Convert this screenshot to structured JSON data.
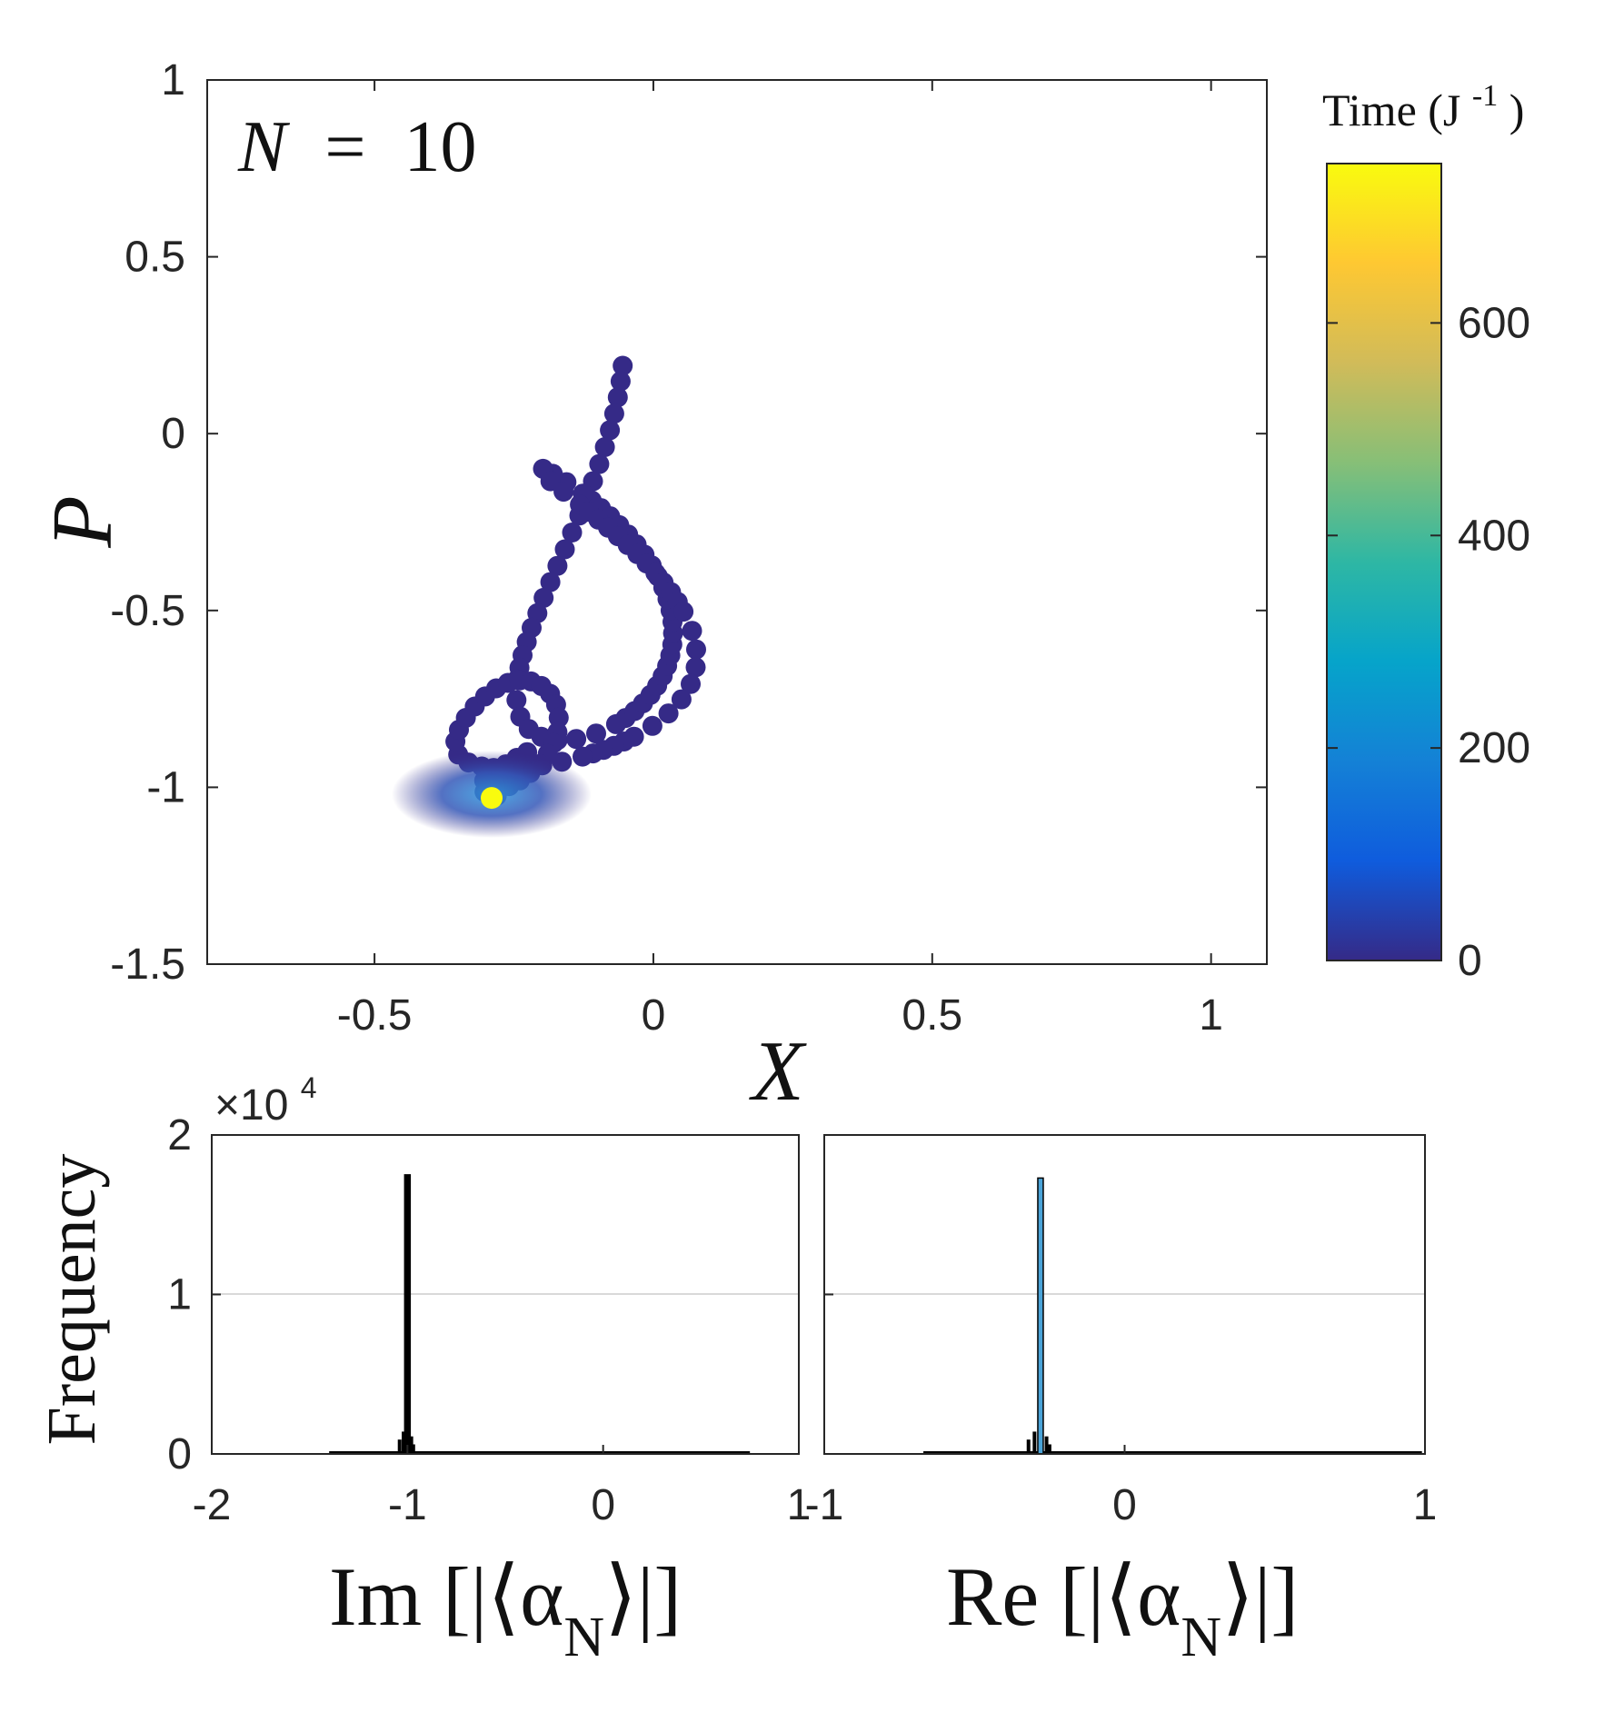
{
  "chart_data": [
    {
      "type": "scatter",
      "title": "N = 10",
      "annotation": {
        "N": "N",
        "eq": "=",
        "value": "10"
      },
      "xlabel": "X",
      "ylabel": "P",
      "xlim": [
        -0.8,
        1.1
      ],
      "ylim": [
        -1.5,
        1.0
      ],
      "xticks": [
        -0.5,
        0,
        0.5,
        1
      ],
      "xtick_labels": [
        "-0.5",
        "0",
        "0.5",
        "1"
      ],
      "yticks": [
        1,
        0.5,
        0,
        -0.5,
        -1,
        -1.5
      ],
      "ytick_labels": [
        "1",
        "0.5",
        "0",
        "-0.5",
        "-1",
        "-1.5"
      ],
      "colorbar": {
        "label": "Time (J",
        "label_exp": "-1",
        "label_close": ")",
        "range": [
          0,
          750
        ],
        "ticks": [
          0,
          200,
          400,
          600
        ],
        "tick_labels": [
          "0",
          "200",
          "400",
          "600"
        ],
        "colormap": [
          "#352a87",
          "#0f5cdd",
          "#1481d6",
          "#06a4ca",
          "#2eb7a4",
          "#87bf77",
          "#d1bb59",
          "#fec832",
          "#f9fb0e"
        ]
      },
      "trajectory_end": {
        "x": -0.29,
        "y": -1.03,
        "time": 750
      },
      "marker_color": "#352a87",
      "end_color": "#f9fb0e"
    },
    {
      "type": "bar",
      "ylabel": "Frequency",
      "xlabel": "Im [|⟨α",
      "xlabel_sub": "N",
      "xlabel_end": "⟩|]",
      "xlim": [
        -2,
        1
      ],
      "ylim": [
        0,
        20000
      ],
      "xticks": [
        -2,
        -1,
        0,
        1
      ],
      "xtick_labels": [
        "-2",
        "-1",
        "0",
        "1"
      ],
      "yticks": [
        0,
        10000,
        20000
      ],
      "ytick_labels": [
        "0",
        "1",
        "2"
      ],
      "y_multiplier": "×10",
      "y_multiplier_exp": "4",
      "peak_x": -1.0,
      "peak_value": 17500,
      "support": [
        -1.4,
        0.75
      ],
      "bar_color": "#000000"
    },
    {
      "type": "bar",
      "xlabel": "Re [|⟨α",
      "xlabel_sub": "N",
      "xlabel_end": "⟩|]",
      "xlim": [
        -1,
        1
      ],
      "ylim": [
        0,
        20000
      ],
      "xticks": [
        -1,
        0,
        1
      ],
      "xtick_labels": [
        "-1",
        "0",
        "1"
      ],
      "peak_x": -0.28,
      "peak_value": 17300,
      "support": [
        -0.67,
        0.99
      ],
      "bar_color": "#4aa3d8"
    }
  ]
}
